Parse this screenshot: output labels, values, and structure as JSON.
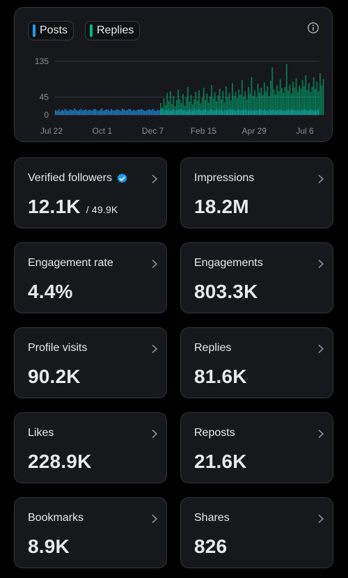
{
  "chart": {
    "legend": [
      {
        "label": "Posts",
        "color": "#1d9bf0"
      },
      {
        "label": "Replies",
        "color": "#00ba7c"
      }
    ],
    "info_icon": "info-icon"
  },
  "chart_data": {
    "type": "bar",
    "title": "",
    "xlabel": "",
    "ylabel": "",
    "ylim": [
      0,
      135
    ],
    "y_ticks": [
      "135",
      "45",
      "0"
    ],
    "x_tick_labels": [
      "Jul 22",
      "Oct 1",
      "Dec 7",
      "Feb 15",
      "Apr 29",
      "Jul 6"
    ],
    "grid": true,
    "legend_position": "top-left",
    "series": [
      {
        "name": "Posts",
        "color": "#1d9bf0",
        "values": [
          12,
          10,
          14,
          9,
          13,
          11,
          15,
          12,
          10,
          14,
          13,
          11,
          16,
          12,
          10,
          13,
          15,
          11,
          12,
          14,
          10,
          13,
          12,
          11,
          15,
          14,
          12,
          10,
          13,
          16,
          11,
          12,
          14,
          13,
          10,
          15,
          12,
          11,
          13,
          14,
          12,
          10,
          16,
          13,
          11,
          12,
          15,
          14,
          10,
          13,
          11,
          12,
          14,
          13,
          15,
          12,
          10,
          11,
          13,
          14,
          12,
          15,
          11,
          10,
          13,
          12,
          14,
          16,
          11,
          12,
          13,
          15,
          10,
          12,
          14,
          11,
          13,
          12,
          15,
          14,
          11,
          13,
          12,
          10,
          14,
          13,
          11,
          15,
          12,
          13,
          14,
          12,
          11,
          13,
          15,
          12,
          10,
          14,
          13,
          12,
          11,
          15,
          13,
          12,
          14,
          10,
          12,
          13,
          11,
          15,
          14,
          12,
          13,
          10,
          12,
          14,
          11,
          13,
          12,
          15,
          13,
          11,
          12,
          14,
          10,
          13,
          12,
          11,
          15,
          14,
          12,
          13,
          11,
          10,
          14,
          12,
          13,
          15,
          11,
          12,
          13,
          14,
          12,
          10,
          13,
          11,
          15,
          12,
          14,
          13,
          12,
          11,
          13,
          10,
          14,
          12,
          15,
          13,
          11,
          12,
          14,
          13,
          10,
          12,
          11,
          15
        ]
      },
      {
        "name": "Replies",
        "color": "#00ba7c",
        "values": [
          0,
          0,
          0,
          0,
          0,
          0,
          0,
          0,
          0,
          0,
          0,
          0,
          0,
          0,
          0,
          0,
          0,
          0,
          0,
          0,
          0,
          0,
          0,
          0,
          0,
          0,
          0,
          0,
          0,
          0,
          0,
          0,
          0,
          0,
          0,
          0,
          0,
          0,
          0,
          0,
          0,
          0,
          0,
          0,
          0,
          0,
          0,
          0,
          0,
          0,
          0,
          0,
          0,
          0,
          0,
          0,
          0,
          0,
          0,
          0,
          0,
          0,
          0,
          0,
          0,
          0,
          30,
          18,
          42,
          25,
          55,
          35,
          60,
          28,
          48,
          22,
          38,
          64,
          40,
          30,
          52,
          24,
          45,
          70,
          33,
          50,
          27,
          40,
          58,
          36,
          62,
          29,
          44,
          68,
          38,
          54,
          31,
          47,
          75,
          42,
          57,
          34,
          49,
          66,
          39,
          60,
          32,
          72,
          45,
          55,
          36,
          80,
          48,
          58,
          42,
          64,
          51,
          88,
          46,
          60,
          39,
          70,
          54,
          95,
          48,
          62,
          44,
          78,
          56,
          68,
          50,
          82,
          59,
          72,
          47,
          86,
          120,
          64,
          52,
          74,
          60,
          90,
          67,
          56,
          70,
          128,
          62,
          76,
          54,
          84,
          69,
          92,
          58,
          74,
          66,
          88,
          72,
          100,
          63,
          80,
          57,
          71,
          95,
          66,
          84,
          60,
          105,
          74,
          90
        ]
      }
    ]
  },
  "stats": [
    {
      "label": "Verified followers",
      "value": "12.1K",
      "sub": "/ 49.9K",
      "verified": true
    },
    {
      "label": "Impressions",
      "value": "18.2M"
    },
    {
      "label": "Engagement rate",
      "value": "4.4%"
    },
    {
      "label": "Engagements",
      "value": "803.3K"
    },
    {
      "label": "Profile visits",
      "value": "90.2K"
    },
    {
      "label": "Replies",
      "value": "81.6K"
    },
    {
      "label": "Likes",
      "value": "228.9K"
    },
    {
      "label": "Reposts",
      "value": "21.6K"
    },
    {
      "label": "Bookmarks",
      "value": "8.9K"
    },
    {
      "label": "Shares",
      "value": "826"
    }
  ]
}
